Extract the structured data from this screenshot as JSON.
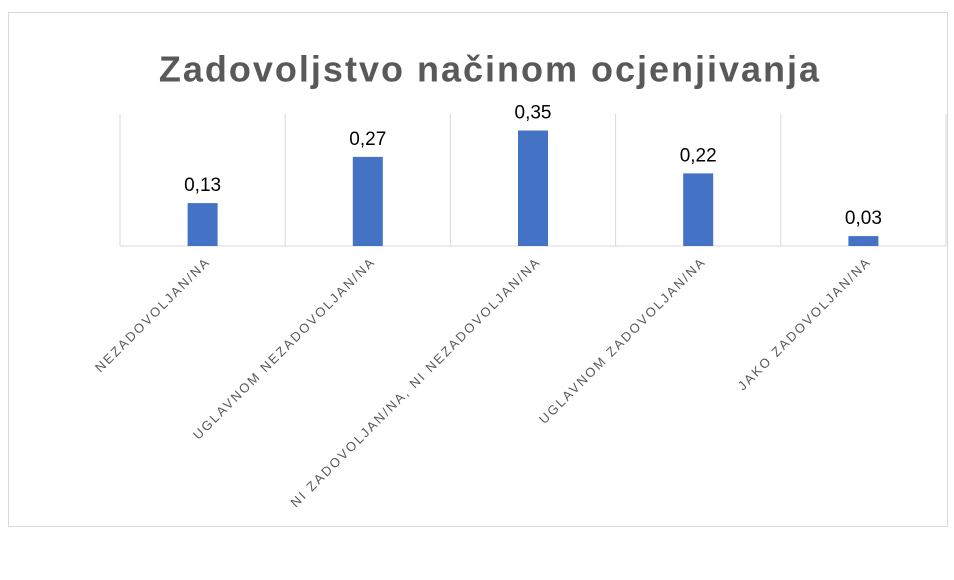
{
  "chart_data": {
    "type": "bar",
    "title": "Zadovoljstvo načinom ocjenjivanja",
    "categories": [
      "NEZADOVOLJAN/NA",
      "UGLAVNOM NEZADOVOLJAN/NA",
      "NI ZADOVOLJAN/NA, NI NEZADOVOLJAN/NA",
      "UGLAVNOM ZADOVOLJAN/NA",
      "JAKO ZADOVOLJAN/NA"
    ],
    "values": [
      0.13,
      0.27,
      0.35,
      0.22,
      0.03
    ],
    "value_labels": [
      "0,13",
      "0,27",
      "0,35",
      "0,22",
      "0,03"
    ],
    "color": "#4472c4",
    "ylim": [
      0,
      0.4
    ]
  }
}
